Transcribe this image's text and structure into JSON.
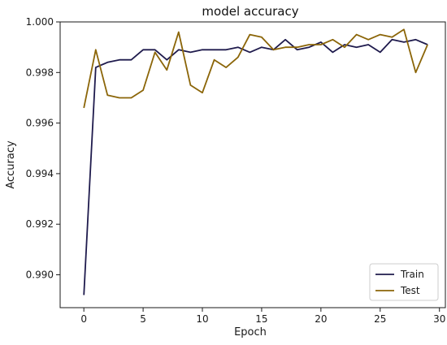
{
  "chart_data": {
    "type": "line",
    "title": "model accuracy",
    "xlabel": "Epoch",
    "ylabel": "Accuracy",
    "xlim": [
      -2,
      30.5
    ],
    "ylim": [
      0.9887,
      1.0
    ],
    "xticks": [
      0,
      5,
      10,
      15,
      20,
      25,
      30
    ],
    "yticks": [
      0.99,
      0.992,
      0.994,
      0.996,
      0.998,
      1.0
    ],
    "ytick_labels": [
      "0.990",
      "0.992",
      "0.994",
      "0.996",
      "0.998",
      "1.000"
    ],
    "grid": false,
    "legend_position": "bottom-right",
    "x": [
      0,
      1,
      2,
      3,
      4,
      5,
      6,
      7,
      8,
      9,
      10,
      11,
      12,
      13,
      14,
      15,
      16,
      17,
      18,
      19,
      20,
      21,
      22,
      23,
      24,
      25,
      26,
      27,
      28,
      29
    ],
    "series": [
      {
        "name": "Train",
        "color": "#1f1b4d",
        "values": [
          0.9892,
          0.9982,
          0.9984,
          0.9985,
          0.9985,
          0.9989,
          0.9989,
          0.9985,
          0.9989,
          0.9988,
          0.9989,
          0.9989,
          0.9989,
          0.999,
          0.9988,
          0.999,
          0.9989,
          0.9993,
          0.9989,
          0.999,
          0.9992,
          0.9988,
          0.9991,
          0.999,
          0.9991,
          0.9988,
          0.9993,
          0.9992,
          0.9993,
          0.9991
        ]
      },
      {
        "name": "Test",
        "color": "#8b6508",
        "values": [
          0.9966,
          0.9989,
          0.9971,
          0.997,
          0.997,
          0.9973,
          0.9988,
          0.9981,
          0.9996,
          0.9975,
          0.9972,
          0.9985,
          0.9982,
          0.9986,
          0.9995,
          0.9994,
          0.9989,
          0.999,
          0.999,
          0.9991,
          0.9991,
          0.9993,
          0.999,
          0.9995,
          0.9993,
          0.9995,
          0.9994,
          0.9997,
          0.998,
          0.9991
        ]
      }
    ]
  }
}
